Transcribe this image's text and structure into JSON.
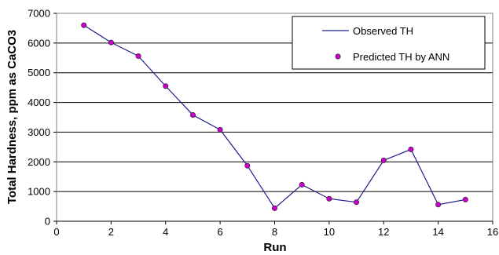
{
  "chart_data": {
    "type": "line",
    "xlabel": "Run",
    "ylabel": "Total Hardness, ppm as CaCO3",
    "xlim": [
      0,
      16
    ],
    "ylim": [
      0,
      7000
    ],
    "xticks": [
      0,
      2,
      4,
      6,
      8,
      10,
      12,
      14,
      16
    ],
    "yticks": [
      0,
      1000,
      2000,
      3000,
      4000,
      5000,
      6000,
      7000
    ],
    "grid": "horizontal",
    "legend_position": "top-right",
    "colors": {
      "line": "#1f1f8c",
      "marker": "#cc00cc",
      "grid": "#000000"
    },
    "series": [
      {
        "name": "Observed TH",
        "style": "line",
        "x": [
          1,
          2,
          3,
          4,
          5,
          6,
          7,
          8,
          9,
          10,
          11,
          12,
          13,
          14,
          15
        ],
        "values": [
          6600,
          6020,
          5560,
          4550,
          3580,
          3080,
          1870,
          440,
          1230,
          760,
          640,
          2050,
          2420,
          560,
          730
        ]
      },
      {
        "name": "Predicted TH by ANN",
        "style": "markers",
        "x": [
          1,
          2,
          3,
          4,
          5,
          6,
          7,
          8,
          9,
          10,
          11,
          12,
          13,
          14,
          15
        ],
        "values": [
          6600,
          6020,
          5560,
          4550,
          3580,
          3080,
          1870,
          440,
          1230,
          760,
          640,
          2050,
          2420,
          560,
          730
        ]
      }
    ]
  }
}
